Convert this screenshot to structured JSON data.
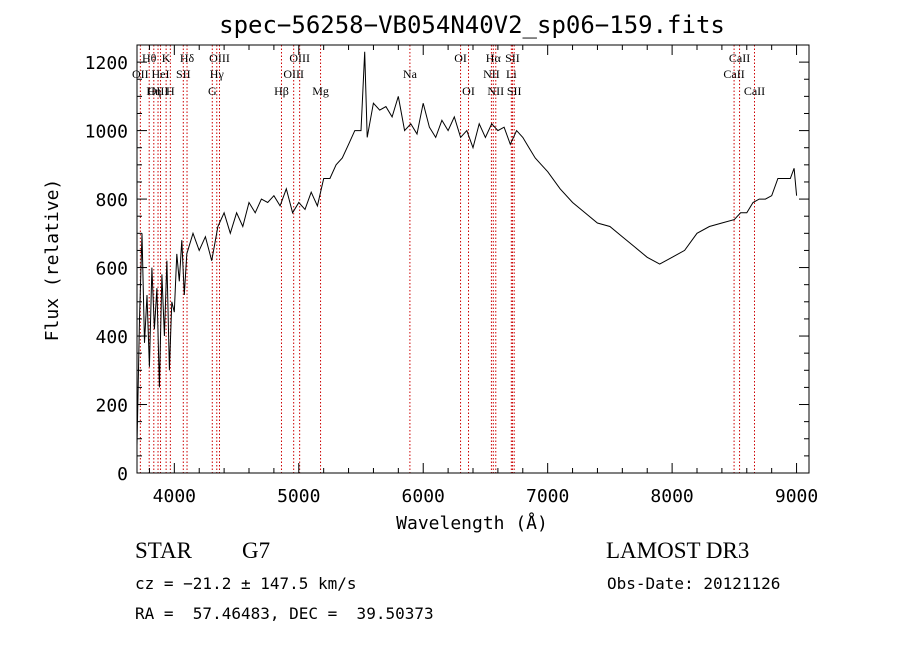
{
  "chart_data": {
    "type": "line",
    "title": "spec−56258−VB054N40V2_sp06−159.fits",
    "xlabel": "Wavelength (Å)",
    "ylabel": "Flux (relative)",
    "xlim": [
      3700,
      9100
    ],
    "ylim": [
      0,
      1250
    ],
    "xticks": [
      4000,
      5000,
      6000,
      7000,
      8000,
      9000
    ],
    "yticks": [
      0,
      200,
      400,
      600,
      800,
      1000,
      1200
    ],
    "grid": false,
    "series": [
      {
        "x": [
          3700,
          3720,
          3740,
          3760,
          3780,
          3800,
          3820,
          3840,
          3860,
          3880,
          3900,
          3920,
          3940,
          3960,
          3980,
          4000,
          4020,
          4040,
          4060,
          4080,
          4100,
          4150,
          4200,
          4250,
          4300,
          4350,
          4400,
          4450,
          4500,
          4550,
          4600,
          4650,
          4700,
          4750,
          4800,
          4850,
          4900,
          4950,
          5000,
          5050,
          5100,
          5150,
          5200,
          5250,
          5300,
          5350,
          5400,
          5450,
          5500,
          5530,
          5550,
          5600,
          5650,
          5700,
          5750,
          5800,
          5850,
          5900,
          5950,
          6000,
          6050,
          6100,
          6150,
          6200,
          6250,
          6300,
          6350,
          6400,
          6450,
          6500,
          6550,
          6600,
          6650,
          6700,
          6750,
          6800,
          6850,
          6900,
          6950,
          7000,
          7100,
          7200,
          7300,
          7400,
          7500,
          7600,
          7700,
          7800,
          7900,
          8000,
          8100,
          8200,
          8300,
          8400,
          8500,
          8550,
          8600,
          8650,
          8700,
          8750,
          8800,
          8850,
          8900,
          8950,
          8980,
          9000
        ],
        "y": [
          80,
          450,
          700,
          380,
          520,
          310,
          600,
          420,
          540,
          250,
          580,
          400,
          620,
          300,
          500,
          470,
          640,
          560,
          680,
          520,
          640,
          700,
          650,
          690,
          620,
          720,
          760,
          700,
          760,
          720,
          790,
          760,
          800,
          790,
          810,
          780,
          830,
          760,
          790,
          770,
          820,
          780,
          860,
          860,
          900,
          920,
          960,
          1000,
          1000,
          1230,
          980,
          1080,
          1060,
          1070,
          1040,
          1100,
          1000,
          1020,
          990,
          1080,
          1010,
          980,
          1030,
          1000,
          1040,
          980,
          1000,
          950,
          1020,
          980,
          1020,
          1000,
          1010,
          960,
          1000,
          980,
          950,
          920,
          900,
          880,
          830,
          790,
          760,
          730,
          720,
          690,
          660,
          630,
          610,
          630,
          650,
          700,
          720,
          730,
          740,
          760,
          760,
          790,
          800,
          800,
          810,
          860,
          860,
          860,
          890,
          810
        ]
      }
    ],
    "line_markers": [
      {
        "label": "Hθ",
        "x": 3798,
        "row": 1
      },
      {
        "label": "OII",
        "x": 3727,
        "row": 2
      },
      {
        "label": "OIII",
        "x": 3869,
        "row": 3
      },
      {
        "label": "Hη",
        "x": 3835,
        "row": 3
      },
      {
        "label": "HeI",
        "x": 3889,
        "row": 2
      },
      {
        "label": "K",
        "x": 3934,
        "row": 1
      },
      {
        "label": "H",
        "x": 3968,
        "row": 3
      },
      {
        "label": "SII",
        "x": 4072,
        "row": 2
      },
      {
        "label": "Hδ",
        "x": 4102,
        "row": 1
      },
      {
        "label": "G",
        "x": 4305,
        "row": 3
      },
      {
        "label": "Hγ",
        "x": 4341,
        "row": 2
      },
      {
        "label": "OIII",
        "x": 4363,
        "row": 1
      },
      {
        "label": "Hβ",
        "x": 4861,
        "row": 3
      },
      {
        "label": "OIII",
        "x": 4959,
        "row": 2
      },
      {
        "label": "OIII",
        "x": 5007,
        "row": 1
      },
      {
        "label": "Mg",
        "x": 5175,
        "row": 3
      },
      {
        "label": "Na",
        "x": 5893,
        "row": 2
      },
      {
        "label": "OI",
        "x": 6300,
        "row": 1
      },
      {
        "label": "OI",
        "x": 6364,
        "row": 3
      },
      {
        "label": "NII",
        "x": 6548,
        "row": 2
      },
      {
        "label": "Hα",
        "x": 6563,
        "row": 1
      },
      {
        "label": "NII",
        "x": 6583,
        "row": 3
      },
      {
        "label": "Li",
        "x": 6708,
        "row": 2
      },
      {
        "label": "SII",
        "x": 6717,
        "row": 1
      },
      {
        "label": "SII",
        "x": 6731,
        "row": 3
      },
      {
        "label": "CaII",
        "x": 8498,
        "row": 2
      },
      {
        "label": "CaII",
        "x": 8542,
        "row": 1
      },
      {
        "label": "CaII",
        "x": 8662,
        "row": 3
      }
    ],
    "marker_color": "#cc0000"
  },
  "info": {
    "object_class": "STAR",
    "subclass": "G7",
    "survey": "LAMOST DR3",
    "redshift": "cz = −21.2 ± 147.5 km/s",
    "obs_date": "Obs-Date: 20121126",
    "coords": "RA =  57.46483, DEC =  39.50373"
  }
}
